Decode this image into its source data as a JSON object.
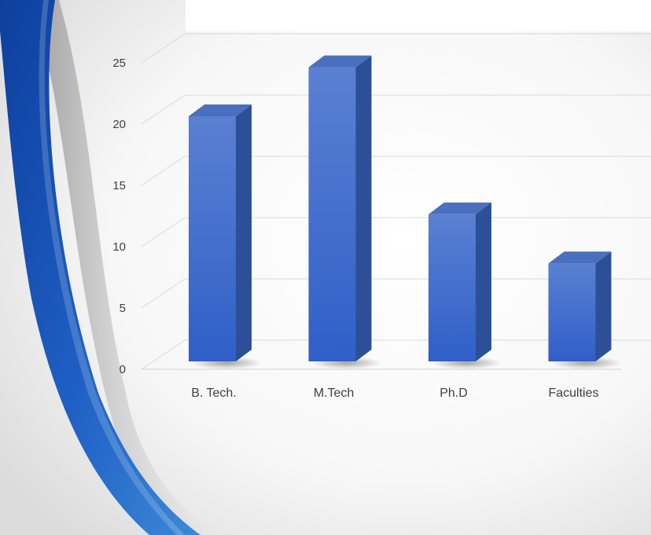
{
  "slide": {
    "accent_color": "#1f5fc4",
    "swoosh_dark": "#0d3f9e",
    "swoosh_light": "#3c8ad8"
  },
  "chart_data": {
    "type": "bar",
    "categories": [
      "B. Tech.",
      "M.Tech",
      "Ph.D",
      "Faculties"
    ],
    "values": [
      20,
      24,
      12,
      8
    ],
    "title": "",
    "xlabel": "",
    "ylabel": "",
    "ylim": [
      0,
      25
    ],
    "yticks": [
      0,
      5,
      10,
      15,
      20,
      25
    ],
    "grid": true,
    "legend": "none",
    "style": "3d-column",
    "bar_color_front": "#3d6ccb",
    "bar_color_side": "#2c4f98",
    "bar_color_top": "#4a6fbf"
  }
}
